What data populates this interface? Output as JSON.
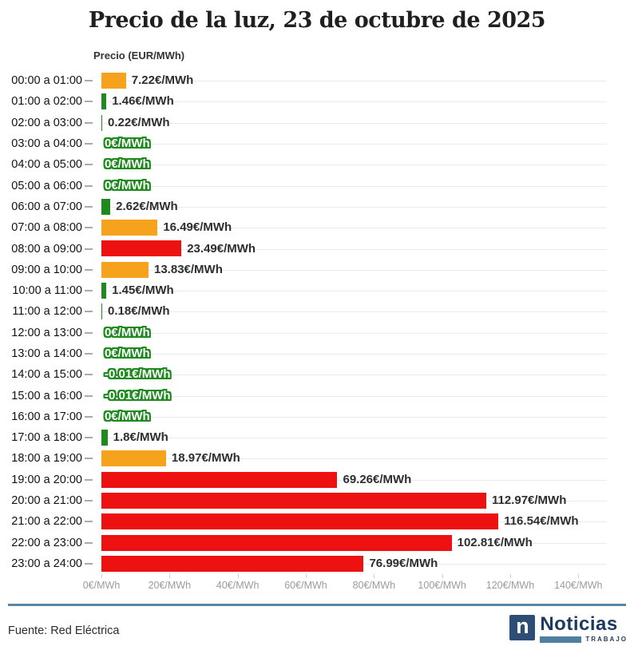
{
  "page": {
    "title": "Precio de la luz, 23 de octubre de 2025",
    "axis_title": "Precio (EUR/MWh)"
  },
  "colors": {
    "orange": "#F6A21C",
    "red": "#EE1111",
    "green": "#1E8A1E",
    "navy": "#1C3A5E",
    "steel": "#5B87A5",
    "gridline": "#EAEAEA",
    "tick_label": "#9B9B9B"
  },
  "chart_data": {
    "type": "bar",
    "orientation": "horizontal",
    "title": "Precio de la luz, 23 de octubre de 2025",
    "xlabel": "Precio (EUR/MWh)",
    "ylabel": "",
    "xlim": [
      0,
      148
    ],
    "grid": "horizontal-row-lines",
    "x_ticks_values": [
      0,
      20,
      40,
      60,
      80,
      100,
      120,
      140
    ],
    "x_ticks": [
      "0€/MWh",
      "20€/MWh",
      "40€/MWh",
      "60€/MWh",
      "80€/MWh",
      "100€/MWh",
      "120€/MWh",
      "140€/MWh"
    ],
    "categories": [
      "00:00 a 01:00",
      "01:00 a 02:00",
      "02:00 a 03:00",
      "03:00 a 04:00",
      "04:00 a 05:00",
      "05:00 a 06:00",
      "06:00 a 07:00",
      "07:00 a 08:00",
      "08:00 a 09:00",
      "09:00 a 10:00",
      "10:00 a 11:00",
      "11:00 a 12:00",
      "12:00 a 13:00",
      "13:00 a 14:00",
      "14:00 a 15:00",
      "15:00 a 16:00",
      "16:00 a 17:00",
      "17:00 a 18:00",
      "18:00 a 19:00",
      "19:00 a 20:00",
      "20:00 a 21:00",
      "21:00 a 22:00",
      "22:00 a 23:00",
      "23:00 a 24:00"
    ],
    "values": [
      7.22,
      1.46,
      0.22,
      0,
      0,
      0,
      2.62,
      16.49,
      23.49,
      13.83,
      1.45,
      0.18,
      0,
      0,
      -0.01,
      -0.01,
      0,
      1.8,
      18.97,
      69.26,
      112.97,
      116.54,
      102.81,
      76.99
    ],
    "value_labels": [
      "7.22€/MWh",
      "1.46€/MWh",
      "0.22€/MWh",
      "0€/MWh",
      "0€/MWh",
      "0€/MWh",
      "2.62€/MWh",
      "16.49€/MWh",
      "23.49€/MWh",
      "13.83€/MWh",
      "1.45€/MWh",
      "0.18€/MWh",
      "0€/MWh",
      "0€/MWh",
      "-0.01€/MWh",
      "-0.01€/MWh",
      "0€/MWh",
      "1.8€/MWh",
      "18.97€/MWh",
      "69.26€/MWh",
      "112.97€/MWh",
      "116.54€/MWh",
      "102.81€/MWh",
      "76.99€/MWh"
    ],
    "bar_colors": [
      "orange",
      "green",
      "green",
      "green",
      "green",
      "green",
      "green",
      "orange",
      "red",
      "orange",
      "green",
      "green",
      "green",
      "green",
      "green",
      "green",
      "green",
      "green",
      "orange",
      "red",
      "red",
      "red",
      "red",
      "red"
    ]
  },
  "footer": {
    "source": "Fuente: Red Eléctrica",
    "logo": {
      "square_letter": "n",
      "brand": "Noticias",
      "sub_brand": "TRABAJO"
    }
  }
}
